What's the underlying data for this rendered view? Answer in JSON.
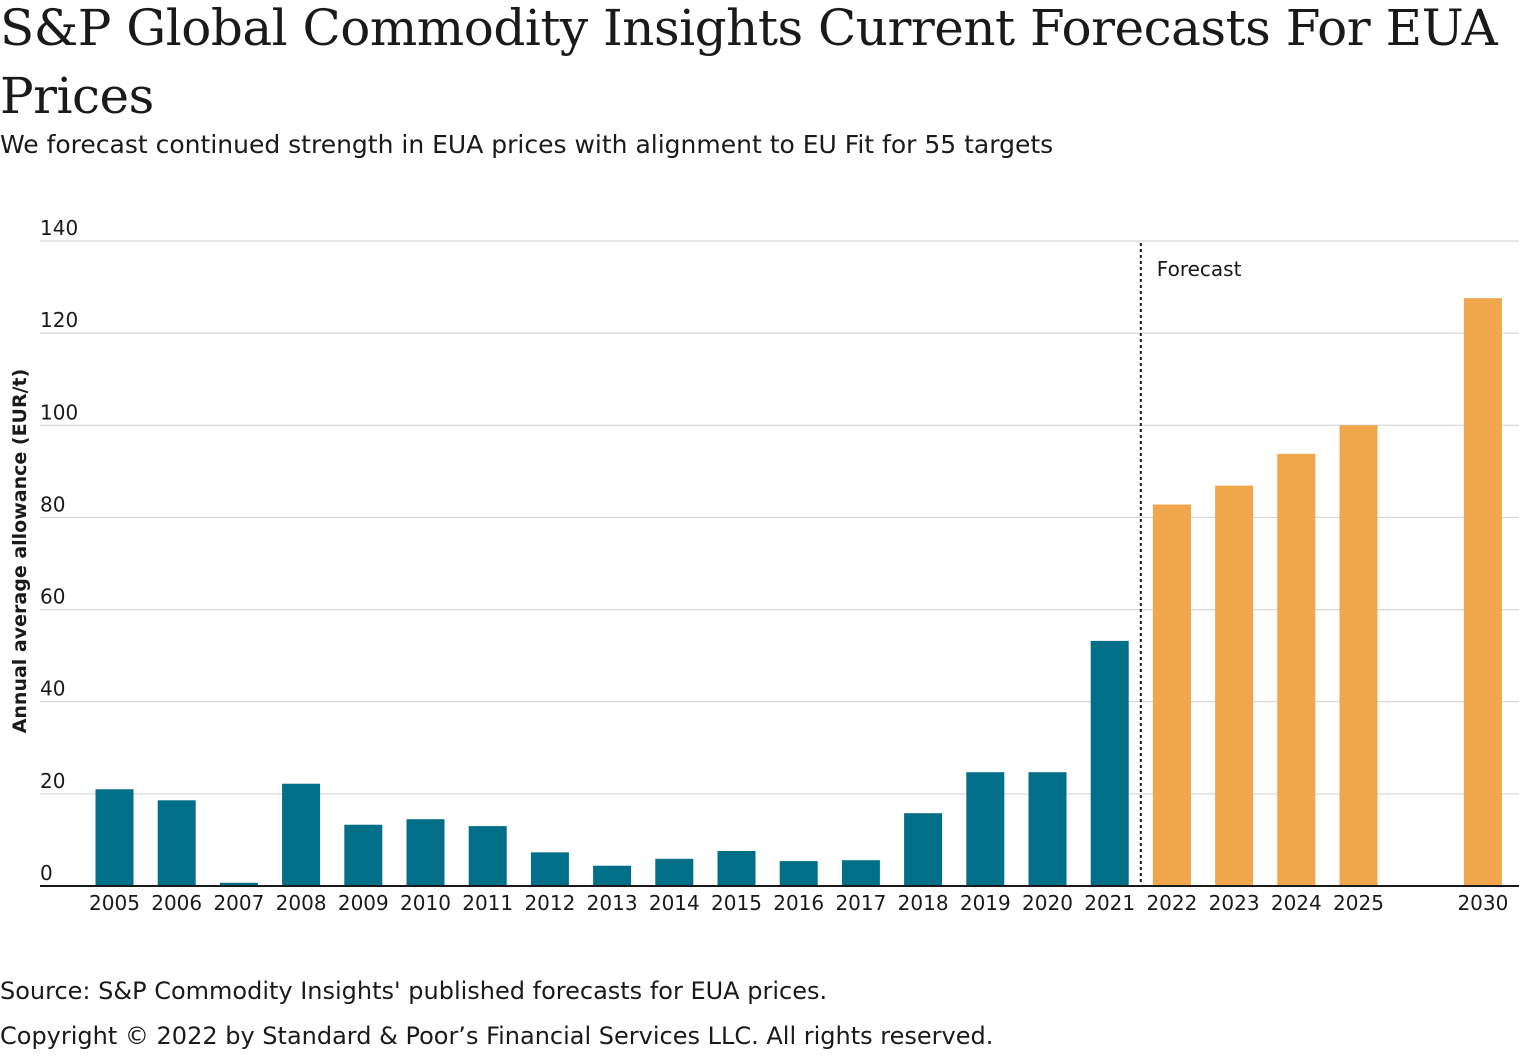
{
  "header": {
    "title": "S&P Global Commodity Insights Current Forecasts For EUA Prices",
    "subtitle": "We forecast continued strength in EUA prices with alignment to EU Fit for 55 targets"
  },
  "footer": {
    "source": "Source: S&P Commodity Insights' published forecasts for EUA prices.",
    "copyright": "Copyright © 2022 by Standard & Poor’s Financial Services LLC. All rights reserved."
  },
  "chart_data": {
    "type": "bar",
    "title": "S&P Global Commodity Insights Current Forecasts For EUA Prices",
    "subtitle": "We forecast continued strength in EUA prices with alignment to EU Fit for 55 targets",
    "xlabel": "",
    "ylabel": "Annual average allowance (EUR/t)",
    "ylim": [
      0,
      140
    ],
    "yticks": [
      0,
      20,
      40,
      60,
      80,
      100,
      120,
      140
    ],
    "grid": true,
    "legend": "none",
    "forecast_label": "Forecast",
    "categories": [
      "2005",
      "2006",
      "2007",
      "2008",
      "2009",
      "2010",
      "2011",
      "2012",
      "2013",
      "2014",
      "2015",
      "2016",
      "2017",
      "2018",
      "2019",
      "2020",
      "2021",
      "2022",
      "2023",
      "2024",
      "2025",
      "2030"
    ],
    "values": [
      21,
      18.6,
      0.7,
      22.2,
      13.3,
      14.5,
      13,
      7.3,
      4.4,
      5.9,
      7.6,
      5.4,
      5.6,
      15.8,
      24.7,
      24.7,
      53.2,
      82.8,
      86.9,
      93.8,
      100,
      127.6
    ],
    "forecast": [
      false,
      false,
      false,
      false,
      false,
      false,
      false,
      false,
      false,
      false,
      false,
      false,
      false,
      false,
      false,
      false,
      false,
      true,
      true,
      true,
      true,
      true
    ],
    "slot_index": [
      0,
      1,
      2,
      3,
      4,
      5,
      6,
      7,
      8,
      9,
      10,
      11,
      12,
      13,
      14,
      15,
      16,
      17,
      18,
      19,
      20,
      22
    ],
    "colors": {
      "historical": "#006f87",
      "forecast": "#f0a64b",
      "grid": "#cfcfcf",
      "axis": "#1a1a1a",
      "divider": "#1a1a1a"
    }
  }
}
